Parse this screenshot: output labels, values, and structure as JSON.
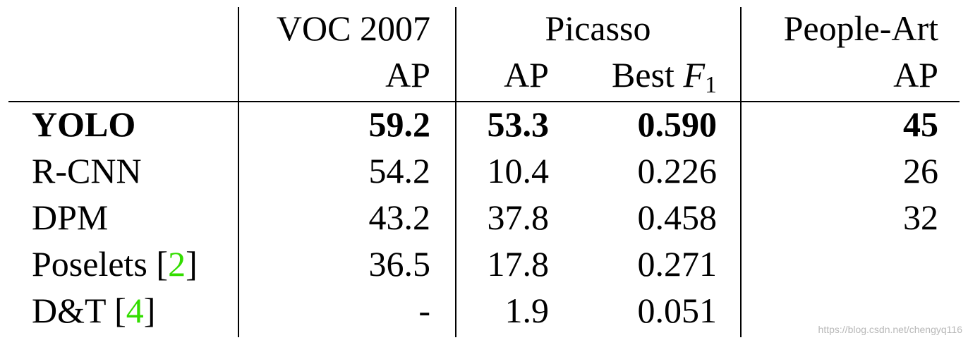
{
  "header": {
    "voc": "VOC 2007",
    "picasso": "Picasso",
    "peopleart": "People-Art",
    "voc_ap": "AP",
    "picasso_ap": "AP",
    "best_prefix": "Best",
    "best_f": "F",
    "best_sub": "1",
    "peopleart_ap": "AP"
  },
  "rows": [
    {
      "method": "YOLO",
      "cite": "",
      "voc_ap": "59.2",
      "picasso_ap": "53.3",
      "picasso_f1": "0.590",
      "peopleart_ap": "45",
      "bold": true
    },
    {
      "method": "R-CNN",
      "cite": "",
      "voc_ap": "54.2",
      "picasso_ap": "10.4",
      "picasso_f1": "0.226",
      "peopleart_ap": "26",
      "bold": false
    },
    {
      "method": "DPM",
      "cite": "",
      "voc_ap": "43.2",
      "picasso_ap": "37.8",
      "picasso_f1": "0.458",
      "peopleart_ap": "32",
      "bold": false
    },
    {
      "method": "Poselets",
      "cite": "2",
      "voc_ap": "36.5",
      "picasso_ap": "17.8",
      "picasso_f1": "0.271",
      "peopleart_ap": "",
      "bold": false
    },
    {
      "method": "D&T",
      "cite": "4",
      "voc_ap": "-",
      "picasso_ap": "1.9",
      "picasso_f1": "0.051",
      "peopleart_ap": "",
      "bold": false
    }
  ],
  "colors": {
    "citation": "#33dd00"
  },
  "watermark": "https://blog.csdn.net/chengyq116"
}
